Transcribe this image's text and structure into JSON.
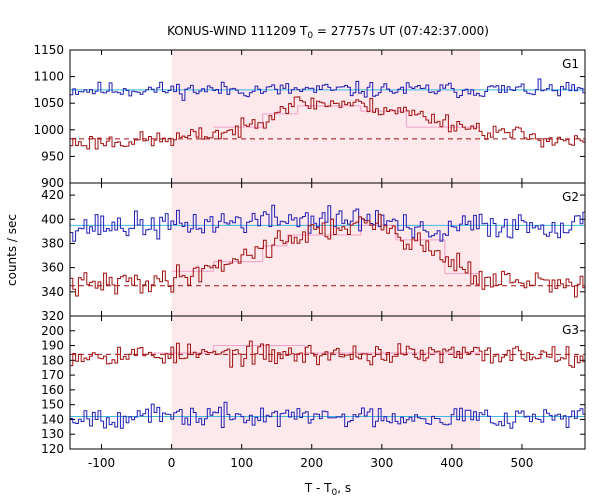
{
  "chart_data": {
    "type": "line",
    "title_prefix": "KONUS-WIND 111209 T",
    "title_sub": "0",
    "title_suffix": " = 27757s UT (07:42:37.000)",
    "xlabel_prefix": "T - T",
    "xlabel_sub": "0",
    "xlabel_suffix": ", s",
    "ylabel": "counts / sec",
    "xlim": [
      -145,
      590
    ],
    "x_ticks": [
      -100,
      0,
      100,
      200,
      300,
      400,
      500
    ],
    "x_tick_labels": [
      "-100",
      "0",
      "100",
      "200",
      "300",
      "400",
      "500"
    ],
    "shaded_interval": [
      0,
      440
    ],
    "colors": {
      "shade": "#fde8ec",
      "blue": "#1f1fb4",
      "red": "#a01010",
      "cyan": "#3fb7e0",
      "pink": "#f2a0c8"
    },
    "panels": [
      {
        "name": "G1",
        "ylim": [
          900,
          1150
        ],
        "y_ticks": [
          900,
          950,
          1000,
          1050,
          1100,
          1150
        ],
        "y_tick_labels": [
          "900",
          "950",
          "1000",
          "1050",
          "1100",
          "1150"
        ],
        "series": [
          {
            "color": "blue",
            "t0": -145,
            "dt": 4,
            "n": 184,
            "seed": 11,
            "noise": 12,
            "profile": [
              [
                -145,
                1075
              ],
              [
                590,
                1075
              ]
            ]
          },
          {
            "color": "red",
            "t0": -145,
            "dt": 4,
            "n": 184,
            "seed": 23,
            "noise": 13,
            "profile": [
              [
                -145,
                975
              ],
              [
                0,
                982
              ],
              [
                100,
                1000
              ],
              [
                170,
                1050
              ],
              [
                250,
                1050
              ],
              [
                330,
                1035
              ],
              [
                440,
                1000
              ],
              [
                590,
                975
              ]
            ]
          }
        ],
        "blocks": [
          {
            "x0": 60,
            "x1": 130,
            "y": 1005
          },
          {
            "x0": 130,
            "x1": 180,
            "y": 1030
          },
          {
            "x0": 180,
            "x1": 270,
            "y": 1045
          },
          {
            "x0": 270,
            "x1": 335,
            "y": 1035
          },
          {
            "x0": 335,
            "x1": 440,
            "y": 1005
          }
        ],
        "bg_lines": [
          {
            "color": "cyan",
            "y": 1075,
            "dashed": false
          },
          {
            "color": "red",
            "y": 983,
            "dashed": true
          }
        ]
      },
      {
        "name": "G2",
        "ylim": [
          320,
          430
        ],
        "y_ticks": [
          320,
          340,
          360,
          380,
          400,
          420
        ],
        "y_tick_labels": [
          "320",
          "340",
          "360",
          "380",
          "400",
          "420"
        ],
        "series": [
          {
            "color": "blue",
            "t0": -145,
            "dt": 4,
            "n": 184,
            "seed": 37,
            "noise": 9,
            "profile": [
              [
                -145,
                394
              ],
              [
                0,
                395
              ],
              [
                150,
                400
              ],
              [
                300,
                400
              ],
              [
                370,
                385
              ],
              [
                420,
                395
              ],
              [
                590,
                395
              ]
            ]
          },
          {
            "color": "red",
            "t0": -145,
            "dt": 4,
            "n": 184,
            "seed": 41,
            "noise": 8,
            "profile": [
              [
                -145,
                345
              ],
              [
                0,
                350
              ],
              [
                80,
                365
              ],
              [
                170,
                385
              ],
              [
                250,
                395
              ],
              [
                300,
                395
              ],
              [
                350,
                380
              ],
              [
                420,
                360
              ],
              [
                440,
                350
              ],
              [
                590,
                345
              ]
            ]
          }
        ],
        "blocks": [
          {
            "x0": 0,
            "x1": 60,
            "y": 357
          },
          {
            "x0": 60,
            "x1": 130,
            "y": 365
          },
          {
            "x0": 130,
            "x1": 165,
            "y": 378
          },
          {
            "x0": 165,
            "x1": 270,
            "y": 387
          },
          {
            "x0": 270,
            "x1": 320,
            "y": 395
          },
          {
            "x0": 320,
            "x1": 390,
            "y": 383
          },
          {
            "x0": 390,
            "x1": 440,
            "y": 355
          }
        ],
        "bg_lines": [
          {
            "color": "cyan",
            "y": 395,
            "dashed": false
          },
          {
            "color": "red",
            "y": 345,
            "dashed": true
          }
        ]
      },
      {
        "name": "G3",
        "ylim": [
          120,
          210
        ],
        "y_ticks": [
          120,
          130,
          140,
          150,
          160,
          170,
          180,
          190,
          200
        ],
        "y_tick_labels": [
          "120",
          "130",
          "140",
          "150",
          "160",
          "170",
          "180",
          "190",
          "200"
        ],
        "series": [
          {
            "color": "red",
            "t0": -145,
            "dt": 4,
            "n": 184,
            "seed": 53,
            "noise": 6,
            "profile": [
              [
                -145,
                184
              ],
              [
                590,
                184
              ]
            ]
          },
          {
            "color": "blue",
            "t0": -145,
            "dt": 4,
            "n": 184,
            "seed": 67,
            "noise": 6,
            "profile": [
              [
                -145,
                142
              ],
              [
                590,
                142
              ]
            ]
          }
        ],
        "blocks": [
          {
            "x0": -30,
            "x1": 60,
            "y": 185
          },
          {
            "x0": 60,
            "x1": 190,
            "y": 190
          },
          {
            "x0": 190,
            "x1": 440,
            "y": 185
          }
        ],
        "bg_lines": [
          {
            "color": "cyan",
            "y": 142,
            "dashed": false
          },
          {
            "color": "red",
            "y": 184,
            "dashed": true
          }
        ]
      }
    ]
  }
}
